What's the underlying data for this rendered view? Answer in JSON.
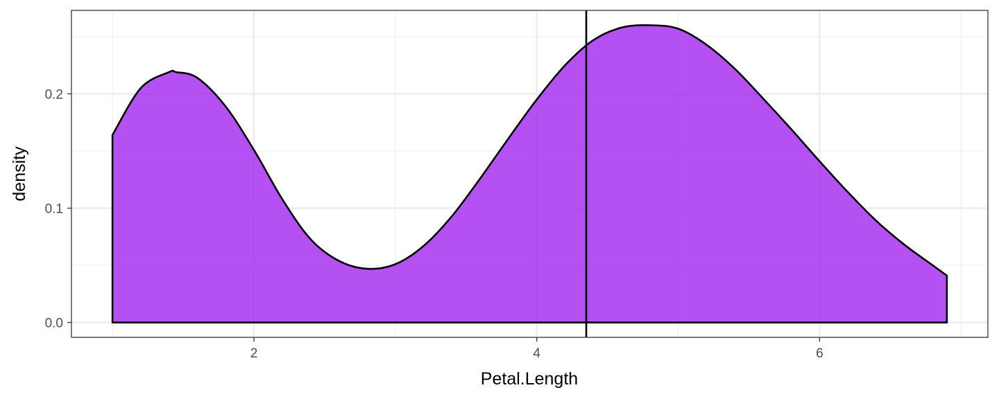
{
  "chart_data": {
    "type": "area",
    "subtype": "density",
    "xlabel": "Petal.Length",
    "ylabel": "density",
    "xlim": [
      0.71,
      7.19
    ],
    "ylim": [
      -0.013,
      0.273
    ],
    "x_ticks": [
      2,
      4,
      6
    ],
    "x_tick_labels": [
      "2",
      "4",
      "6"
    ],
    "y_ticks": [
      0.0,
      0.1,
      0.2
    ],
    "y_tick_labels": [
      "0.0",
      "0.1",
      "0.2"
    ],
    "grid": true,
    "theme": "bw",
    "fill_color": "#a020f0",
    "fill_opacity": 0.78,
    "line_color": "#000000",
    "vline": {
      "x": 4.35,
      "color": "#000000"
    },
    "series": [
      {
        "x": [
          1.0,
          1.2,
          1.4,
          1.45,
          1.6,
          1.8,
          2.0,
          2.2,
          2.4,
          2.6,
          2.8,
          3.0,
          3.2,
          3.4,
          3.6,
          3.8,
          4.0,
          4.2,
          4.4,
          4.6,
          4.8,
          5.0,
          5.2,
          5.4,
          5.6,
          5.8,
          6.0,
          6.2,
          6.4,
          6.6,
          6.8,
          6.9
        ],
        "y": [
          0.164,
          0.205,
          0.219,
          0.219,
          0.214,
          0.189,
          0.151,
          0.108,
          0.073,
          0.054,
          0.047,
          0.051,
          0.067,
          0.093,
          0.126,
          0.161,
          0.195,
          0.225,
          0.247,
          0.258,
          0.26,
          0.257,
          0.243,
          0.222,
          0.196,
          0.169,
          0.141,
          0.114,
          0.089,
          0.068,
          0.05,
          0.041
        ]
      }
    ]
  }
}
